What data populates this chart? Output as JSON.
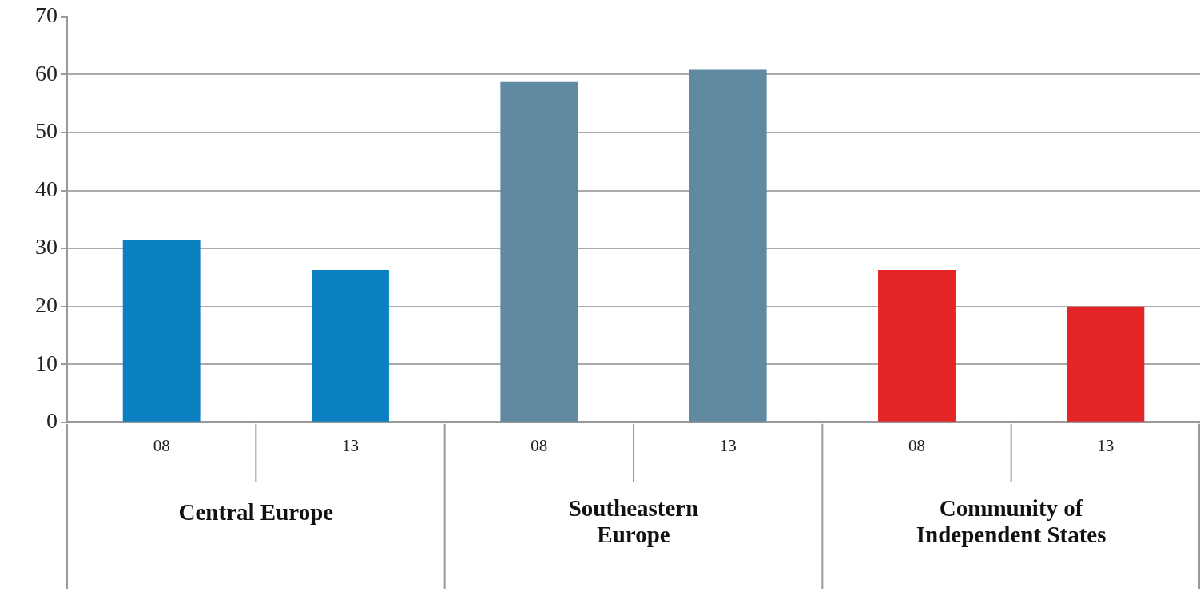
{
  "chart_data": {
    "type": "bar",
    "categories": [
      "08",
      "13",
      "08",
      "13",
      "08",
      "13"
    ],
    "values": [
      31.5,
      26.3,
      58.7,
      60.8,
      26.3,
      20.0
    ],
    "colors": [
      "#0a80c0",
      "#0a80c0",
      "#6089a2",
      "#6089a2",
      "#e32526",
      "#e32526"
    ],
    "annotations": [
      "Central Europe",
      "Southeastern Europe",
      "Community of Independent States"
    ],
    "ylim": [
      0,
      70
    ],
    "yticks": [
      0,
      10,
      20,
      30,
      40,
      50,
      60,
      70
    ],
    "grid": "y"
  }
}
